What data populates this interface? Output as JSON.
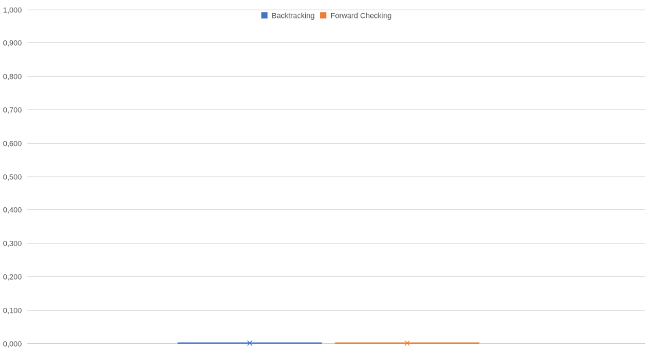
{
  "chart_data": {
    "type": "box",
    "title": "",
    "xlabel": "",
    "ylabel": "",
    "ylim": [
      0,
      1
    ],
    "y_ticks": [
      "0,000",
      "0,100",
      "0,200",
      "0,300",
      "0,400",
      "0,500",
      "0,600",
      "0,700",
      "0,800",
      "0,900",
      "1,000"
    ],
    "y_tick_values": [
      0,
      0.1,
      0.2,
      0.3,
      0.4,
      0.5,
      0.6,
      0.7,
      0.8,
      0.9,
      1.0
    ],
    "grid": true,
    "legend_position": "top-center",
    "series": [
      {
        "name": "Backtracking",
        "color": "#4472C4",
        "min": 0,
        "q1": 0,
        "median": 0,
        "q3": 0,
        "max": 0,
        "mean": 0
      },
      {
        "name": "Forward Checking",
        "color": "#ED7D31",
        "min": 0,
        "q1": 0,
        "median": 0,
        "q3": 0,
        "max": 0,
        "mean": 0
      }
    ]
  }
}
